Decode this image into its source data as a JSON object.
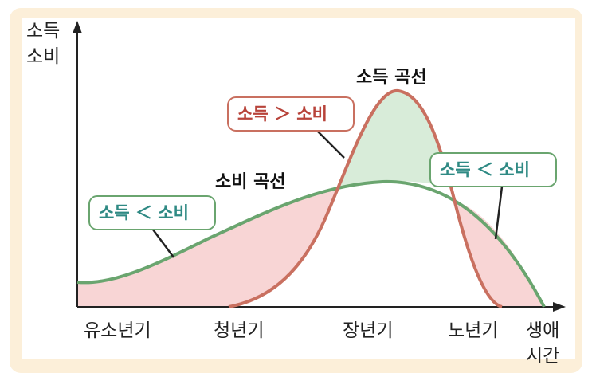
{
  "colors": {
    "frame": "#fcefd9",
    "income_curve": "#c97060",
    "consumption_curve": "#6aa56f",
    "surplus_fill": "#d8ecd9",
    "deficit_fill": "#f8d5d5",
    "callout_red_text": "#b8433a",
    "callout_green_text": "#2f8a84"
  },
  "chart_data": {
    "type": "line",
    "ylabel_lines": [
      "소득",
      "소비"
    ],
    "xlabel_lines": [
      "생애",
      "시간"
    ],
    "categories": [
      "유소년기",
      "청년기",
      "장년기",
      "노년기"
    ],
    "series": [
      {
        "name": "소득 곡선",
        "shape": "bell curve starting at 청년기, peaking between 장년기 and 노년기, ending before 노년기 end"
      },
      {
        "name": "소비 곡선",
        "shape": "gradual rise from 유소년기, peak near 장년기, decline to zero at end of life"
      }
    ],
    "annotations": [
      "소득 ＜ 소비",
      "소득 ＞ 소비",
      "소득 ＜ 소비"
    ],
    "grid": false,
    "ticks_numeric": false
  }
}
